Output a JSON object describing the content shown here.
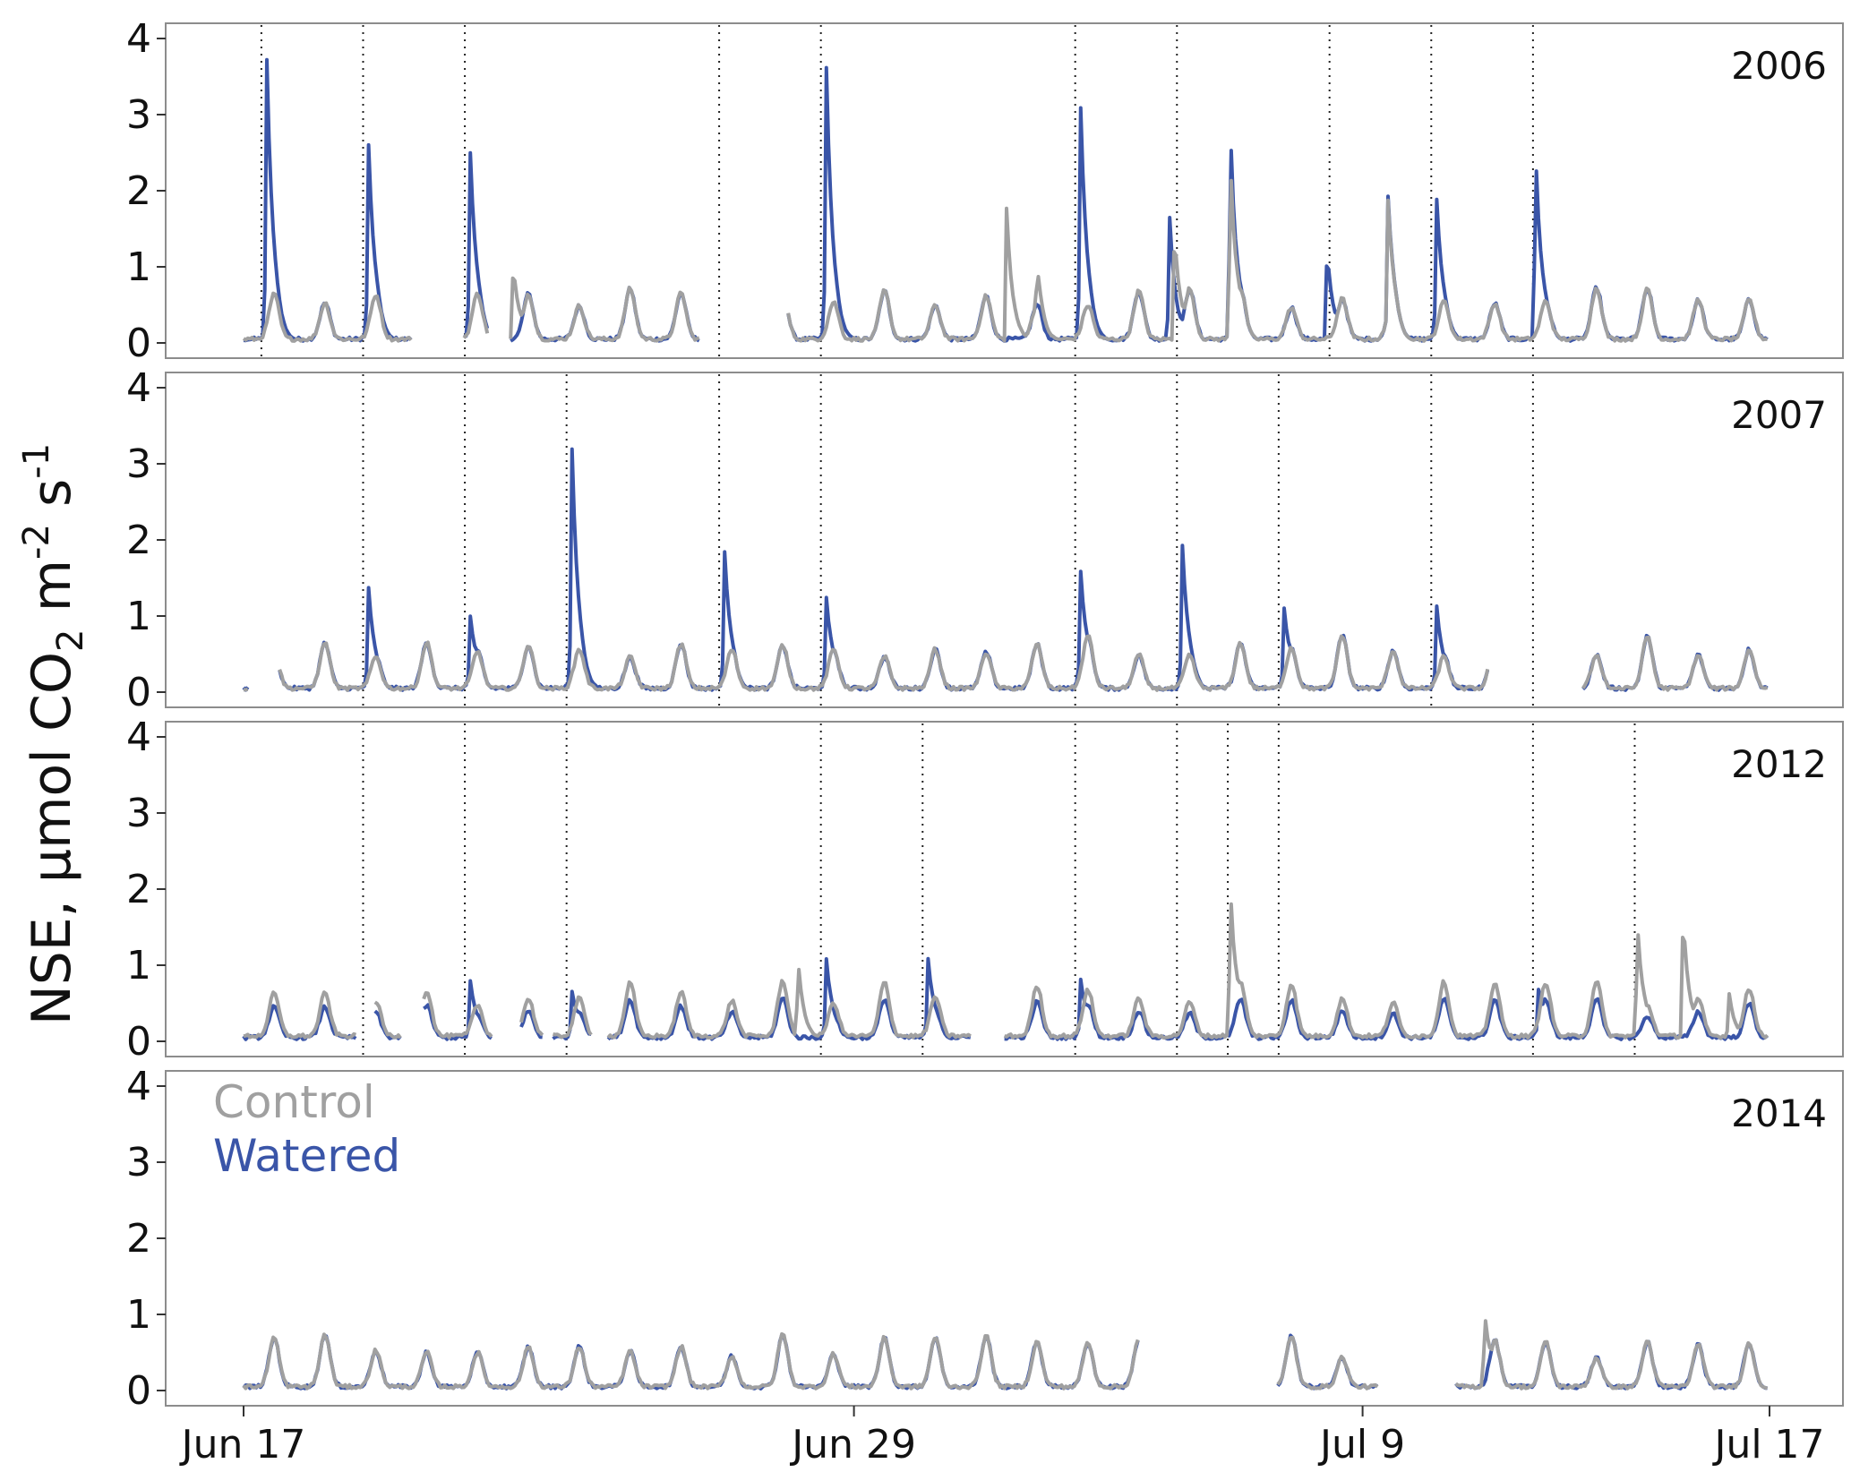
{
  "chart_data": {
    "type": "line",
    "ylabel": "NSE, µmol CO2 m-2 s-1",
    "ylabel_parts": {
      "main": "NSE, µmol CO",
      "sub": "2",
      "mid": " m",
      "sup1": "-2",
      "mid2": " s",
      "sup2": "-1"
    },
    "ylim": [
      -0.2,
      4.2
    ],
    "yticks": [
      "0",
      "1",
      "2",
      "3",
      "4"
    ],
    "xlim": [
      0,
      30.5
    ],
    "xticks": [
      {
        "label": "Jun 17",
        "day": 0
      },
      {
        "label": "Jun 29",
        "day": 12
      },
      {
        "label": "Jul 9",
        "day": 22
      },
      {
        "label": "Jul 17",
        "day": 30
      }
    ],
    "grid": false,
    "legend": {
      "placement": "top-left",
      "entries": [
        {
          "name": "Control",
          "color": "#a0a0a0"
        },
        {
          "name": "Watered",
          "color": "#3a55a8"
        }
      ]
    },
    "series_colors": {
      "Control": "#a0a0a0",
      "Watered": "#3a55a8"
    },
    "panels": [
      {
        "year": "2006",
        "event_days": [
          0.35,
          2.35,
          4.35,
          9.35,
          11.35,
          16.35,
          18.35,
          21.35,
          23.35,
          25.35
        ],
        "gaps": [
          [
            3.3,
            4.3
          ],
          [
            4.8,
            5.25
          ],
          [
            9.0,
            10.7
          ]
        ],
        "watered_spikes": [
          [
            0.45,
            3.9
          ],
          [
            2.45,
            2.7
          ],
          [
            4.45,
            2.6
          ],
          [
            11.45,
            3.8
          ],
          [
            16.45,
            3.25
          ],
          [
            18.2,
            1.75
          ],
          [
            19.4,
            2.85
          ],
          [
            21.3,
            1.25
          ],
          [
            22.5,
            1.8
          ],
          [
            23.45,
            1.95
          ],
          [
            25.4,
            2.55
          ]
        ],
        "control_spikes": [
          [
            5.3,
            1.05
          ],
          [
            15.0,
            1.75
          ],
          [
            15.6,
            0.9
          ],
          [
            18.3,
            1.5
          ],
          [
            19.4,
            2.4
          ],
          [
            22.5,
            1.75
          ]
        ]
      },
      {
        "year": "2007",
        "event_days": [
          2.35,
          4.35,
          6.35,
          9.35,
          11.35,
          16.35,
          18.35,
          20.35,
          23.35,
          25.35
        ],
        "gaps": [
          [
            0.1,
            0.7
          ],
          [
            24.5,
            26.3
          ]
        ],
        "watered_spikes": [
          [
            2.45,
            1.4
          ],
          [
            4.45,
            1.0
          ],
          [
            6.45,
            3.35
          ],
          [
            9.45,
            1.9
          ],
          [
            11.45,
            1.25
          ],
          [
            16.45,
            1.6
          ],
          [
            18.45,
            2.0
          ],
          [
            20.45,
            1.1
          ],
          [
            23.45,
            1.15
          ]
        ],
        "control_spikes": []
      },
      {
        "year": "2012",
        "event_days": [
          2.35,
          4.35,
          6.35,
          11.35,
          13.35,
          16.35,
          18.35,
          19.35,
          20.35,
          25.35,
          27.35
        ],
        "gaps": [
          [
            2.25,
            2.55
          ],
          [
            3.1,
            3.5
          ],
          [
            4.9,
            5.45
          ],
          [
            5.9,
            6.05
          ],
          [
            6.85,
            7.15
          ],
          [
            14.3,
            14.95
          ]
        ],
        "watered_spikes": [
          [
            4.45,
            0.8
          ],
          [
            6.45,
            0.65
          ],
          [
            11.45,
            1.1
          ],
          [
            13.45,
            1.1
          ],
          [
            16.45,
            0.8
          ],
          [
            25.45,
            0.65
          ]
        ],
        "control_spikes": [
          [
            10.9,
            1.05
          ],
          [
            19.4,
            2.0
          ],
          [
            27.4,
            1.55
          ],
          [
            28.3,
            1.7
          ],
          [
            29.2,
            0.65
          ]
        ]
      },
      {
        "year": "2014",
        "event_days": [],
        "gaps": [
          [
            17.6,
            20.3
          ],
          [
            22.3,
            23.8
          ]
        ],
        "watered_spikes": [],
        "control_spikes": [
          [
            24.4,
            1.0
          ]
        ]
      }
    ]
  }
}
